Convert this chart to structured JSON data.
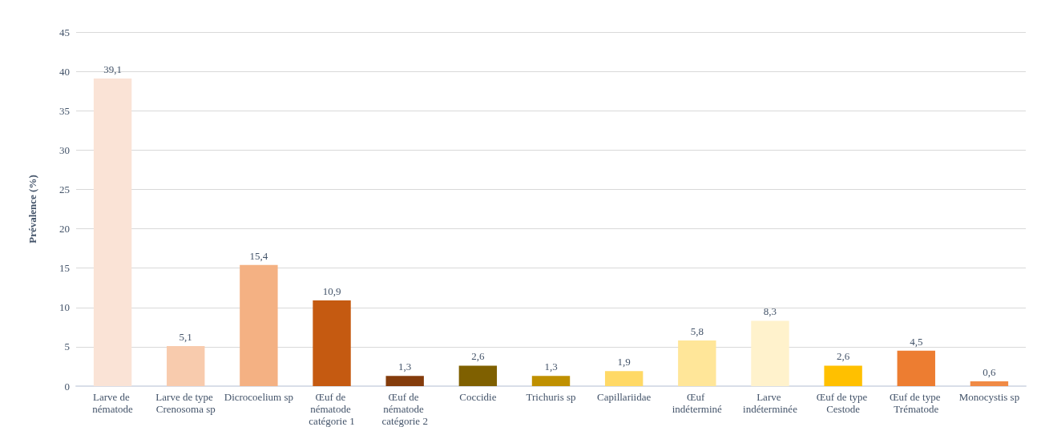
{
  "chart_data": {
    "type": "bar",
    "ylabel": "Prévalence (%)",
    "categories": [
      "Larve de nématode",
      "Larve de type Crenosoma sp",
      "Dicrocoelium sp",
      "Œuf de nématode catégorie 1",
      "Œuf de nématode catégorie 2",
      "Coccidie",
      "Trichuris sp",
      "Capillariidae",
      "Œuf indéterminé",
      "Larve indéterminée",
      "Œuf de type Cestode",
      "Œuf de type Trématode",
      "Monocystis sp"
    ],
    "values": [
      39.1,
      5.1,
      15.4,
      10.9,
      1.3,
      2.6,
      1.3,
      1.9,
      5.8,
      8.3,
      2.6,
      4.5,
      0.6
    ],
    "value_labels": [
      "39,1",
      "5,1",
      "15,4",
      "10,9",
      "1,3",
      "2,6",
      "1,3",
      "1,9",
      "5,8",
      "8,3",
      "2,6",
      "4,5",
      "0,6"
    ],
    "colors": [
      "#fae3d6",
      "#f8cbad",
      "#f4b183",
      "#c55a11",
      "#843c0c",
      "#7f6000",
      "#bf9000",
      "#ffd966",
      "#ffe699",
      "#fff2cc",
      "#ffc000",
      "#ed7d31",
      "#f08a45"
    ],
    "ylim": [
      0,
      45
    ],
    "yticks": [
      0,
      5,
      10,
      15,
      20,
      25,
      30,
      35,
      40,
      45
    ],
    "grid": "y"
  }
}
